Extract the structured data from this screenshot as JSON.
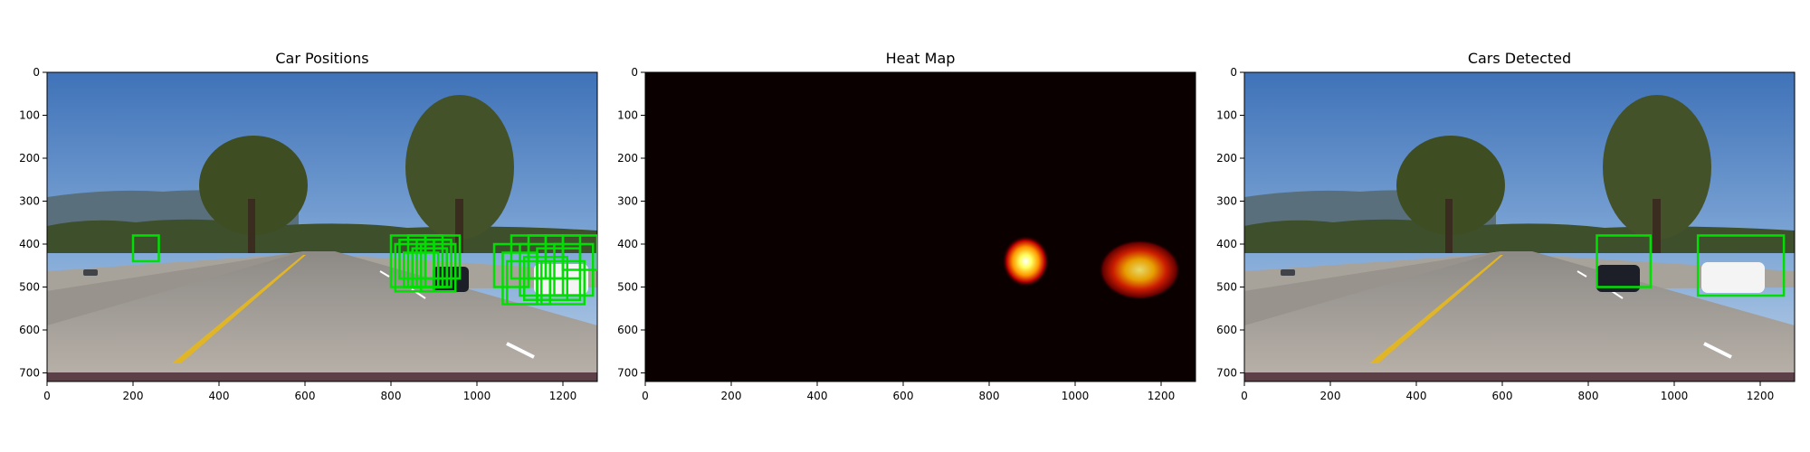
{
  "figure": {
    "panels": [
      {
        "id": "car-positions",
        "title": "Car Positions",
        "x_ticks": [
          "0",
          "200",
          "400",
          "600",
          "800",
          "1000",
          "1200"
        ],
        "y_ticks": [
          "0",
          "100",
          "200",
          "300",
          "400",
          "500",
          "600",
          "700"
        ],
        "content": "road-image",
        "box_color": "#00e000"
      },
      {
        "id": "heat-map",
        "title": "Heat Map",
        "x_ticks": [
          "0",
          "200",
          "400",
          "600",
          "800",
          "1000",
          "1200"
        ],
        "y_ticks": [
          "0",
          "100",
          "200",
          "300",
          "400",
          "500",
          "600",
          "700"
        ],
        "content": "heatmap",
        "colormap": "hot"
      },
      {
        "id": "cars-detected",
        "title": "Cars Detected",
        "x_ticks": [
          "0",
          "200",
          "400",
          "600",
          "800",
          "1000",
          "1200"
        ],
        "y_ticks": [
          "0",
          "100",
          "200",
          "300",
          "400",
          "500",
          "600",
          "700"
        ],
        "content": "road-image",
        "box_color": "#00e000"
      }
    ]
  },
  "chart_data": [
    {
      "type": "image",
      "title": "Car Positions",
      "xlim": [
        0,
        1280
      ],
      "ylim": [
        720,
        0
      ],
      "xticks": [
        0,
        200,
        400,
        600,
        800,
        1000,
        1200
      ],
      "yticks": [
        0,
        100,
        200,
        300,
        400,
        500,
        600,
        700
      ],
      "detection_windows": [
        {
          "x0": 200,
          "y0": 380,
          "x1": 260,
          "y1": 440
        },
        {
          "x0": 800,
          "y0": 380,
          "x1": 880,
          "y1": 500
        },
        {
          "x0": 820,
          "y0": 390,
          "x1": 900,
          "y1": 480
        },
        {
          "x0": 840,
          "y0": 380,
          "x1": 920,
          "y1": 500
        },
        {
          "x0": 860,
          "y0": 390,
          "x1": 940,
          "y1": 500
        },
        {
          "x0": 880,
          "y0": 380,
          "x1": 960,
          "y1": 480
        },
        {
          "x0": 810,
          "y0": 400,
          "x1": 900,
          "y1": 510
        },
        {
          "x0": 850,
          "y0": 410,
          "x1": 930,
          "y1": 500
        },
        {
          "x0": 870,
          "y0": 400,
          "x1": 950,
          "y1": 510
        },
        {
          "x0": 830,
          "y0": 420,
          "x1": 910,
          "y1": 500
        },
        {
          "x0": 1040,
          "y0": 400,
          "x1": 1120,
          "y1": 500
        },
        {
          "x0": 1060,
          "y0": 420,
          "x1": 1140,
          "y1": 540
        },
        {
          "x0": 1080,
          "y0": 380,
          "x1": 1160,
          "y1": 480
        },
        {
          "x0": 1100,
          "y0": 400,
          "x1": 1200,
          "y1": 520
        },
        {
          "x0": 1120,
          "y0": 380,
          "x1": 1200,
          "y1": 480
        },
        {
          "x0": 1140,
          "y0": 410,
          "x1": 1240,
          "y1": 530
        },
        {
          "x0": 1160,
          "y0": 380,
          "x1": 1240,
          "y1": 480
        },
        {
          "x0": 1180,
          "y0": 400,
          "x1": 1270,
          "y1": 520
        },
        {
          "x0": 1200,
          "y0": 380,
          "x1": 1280,
          "y1": 460
        },
        {
          "x0": 1070,
          "y0": 440,
          "x1": 1170,
          "y1": 540
        },
        {
          "x0": 1110,
          "y0": 430,
          "x1": 1210,
          "y1": 530
        },
        {
          "x0": 1150,
          "y0": 440,
          "x1": 1250,
          "y1": 540
        }
      ]
    },
    {
      "type": "heatmap",
      "title": "Heat Map",
      "xlim": [
        0,
        1280
      ],
      "ylim": [
        720,
        0
      ],
      "xticks": [
        0,
        200,
        400,
        600,
        800,
        1000,
        1200
      ],
      "yticks": [
        0,
        100,
        200,
        300,
        400,
        500,
        600,
        700
      ],
      "colormap": "hot",
      "hot_regions": [
        {
          "cx": 885,
          "cy": 440,
          "rx": 55,
          "ry": 60,
          "peak": 1.0
        },
        {
          "cx": 1150,
          "cy": 460,
          "rx": 95,
          "ry": 70,
          "peak": 0.9
        }
      ]
    },
    {
      "type": "image",
      "title": "Cars Detected",
      "xlim": [
        0,
        1280
      ],
      "ylim": [
        720,
        0
      ],
      "xticks": [
        0,
        200,
        400,
        600,
        800,
        1000,
        1200
      ],
      "yticks": [
        0,
        100,
        200,
        300,
        400,
        500,
        600,
        700
      ],
      "car_boxes": [
        {
          "x0": 820,
          "y0": 380,
          "x1": 945,
          "y1": 500
        },
        {
          "x0": 1055,
          "y0": 380,
          "x1": 1255,
          "y1": 520
        }
      ]
    }
  ]
}
